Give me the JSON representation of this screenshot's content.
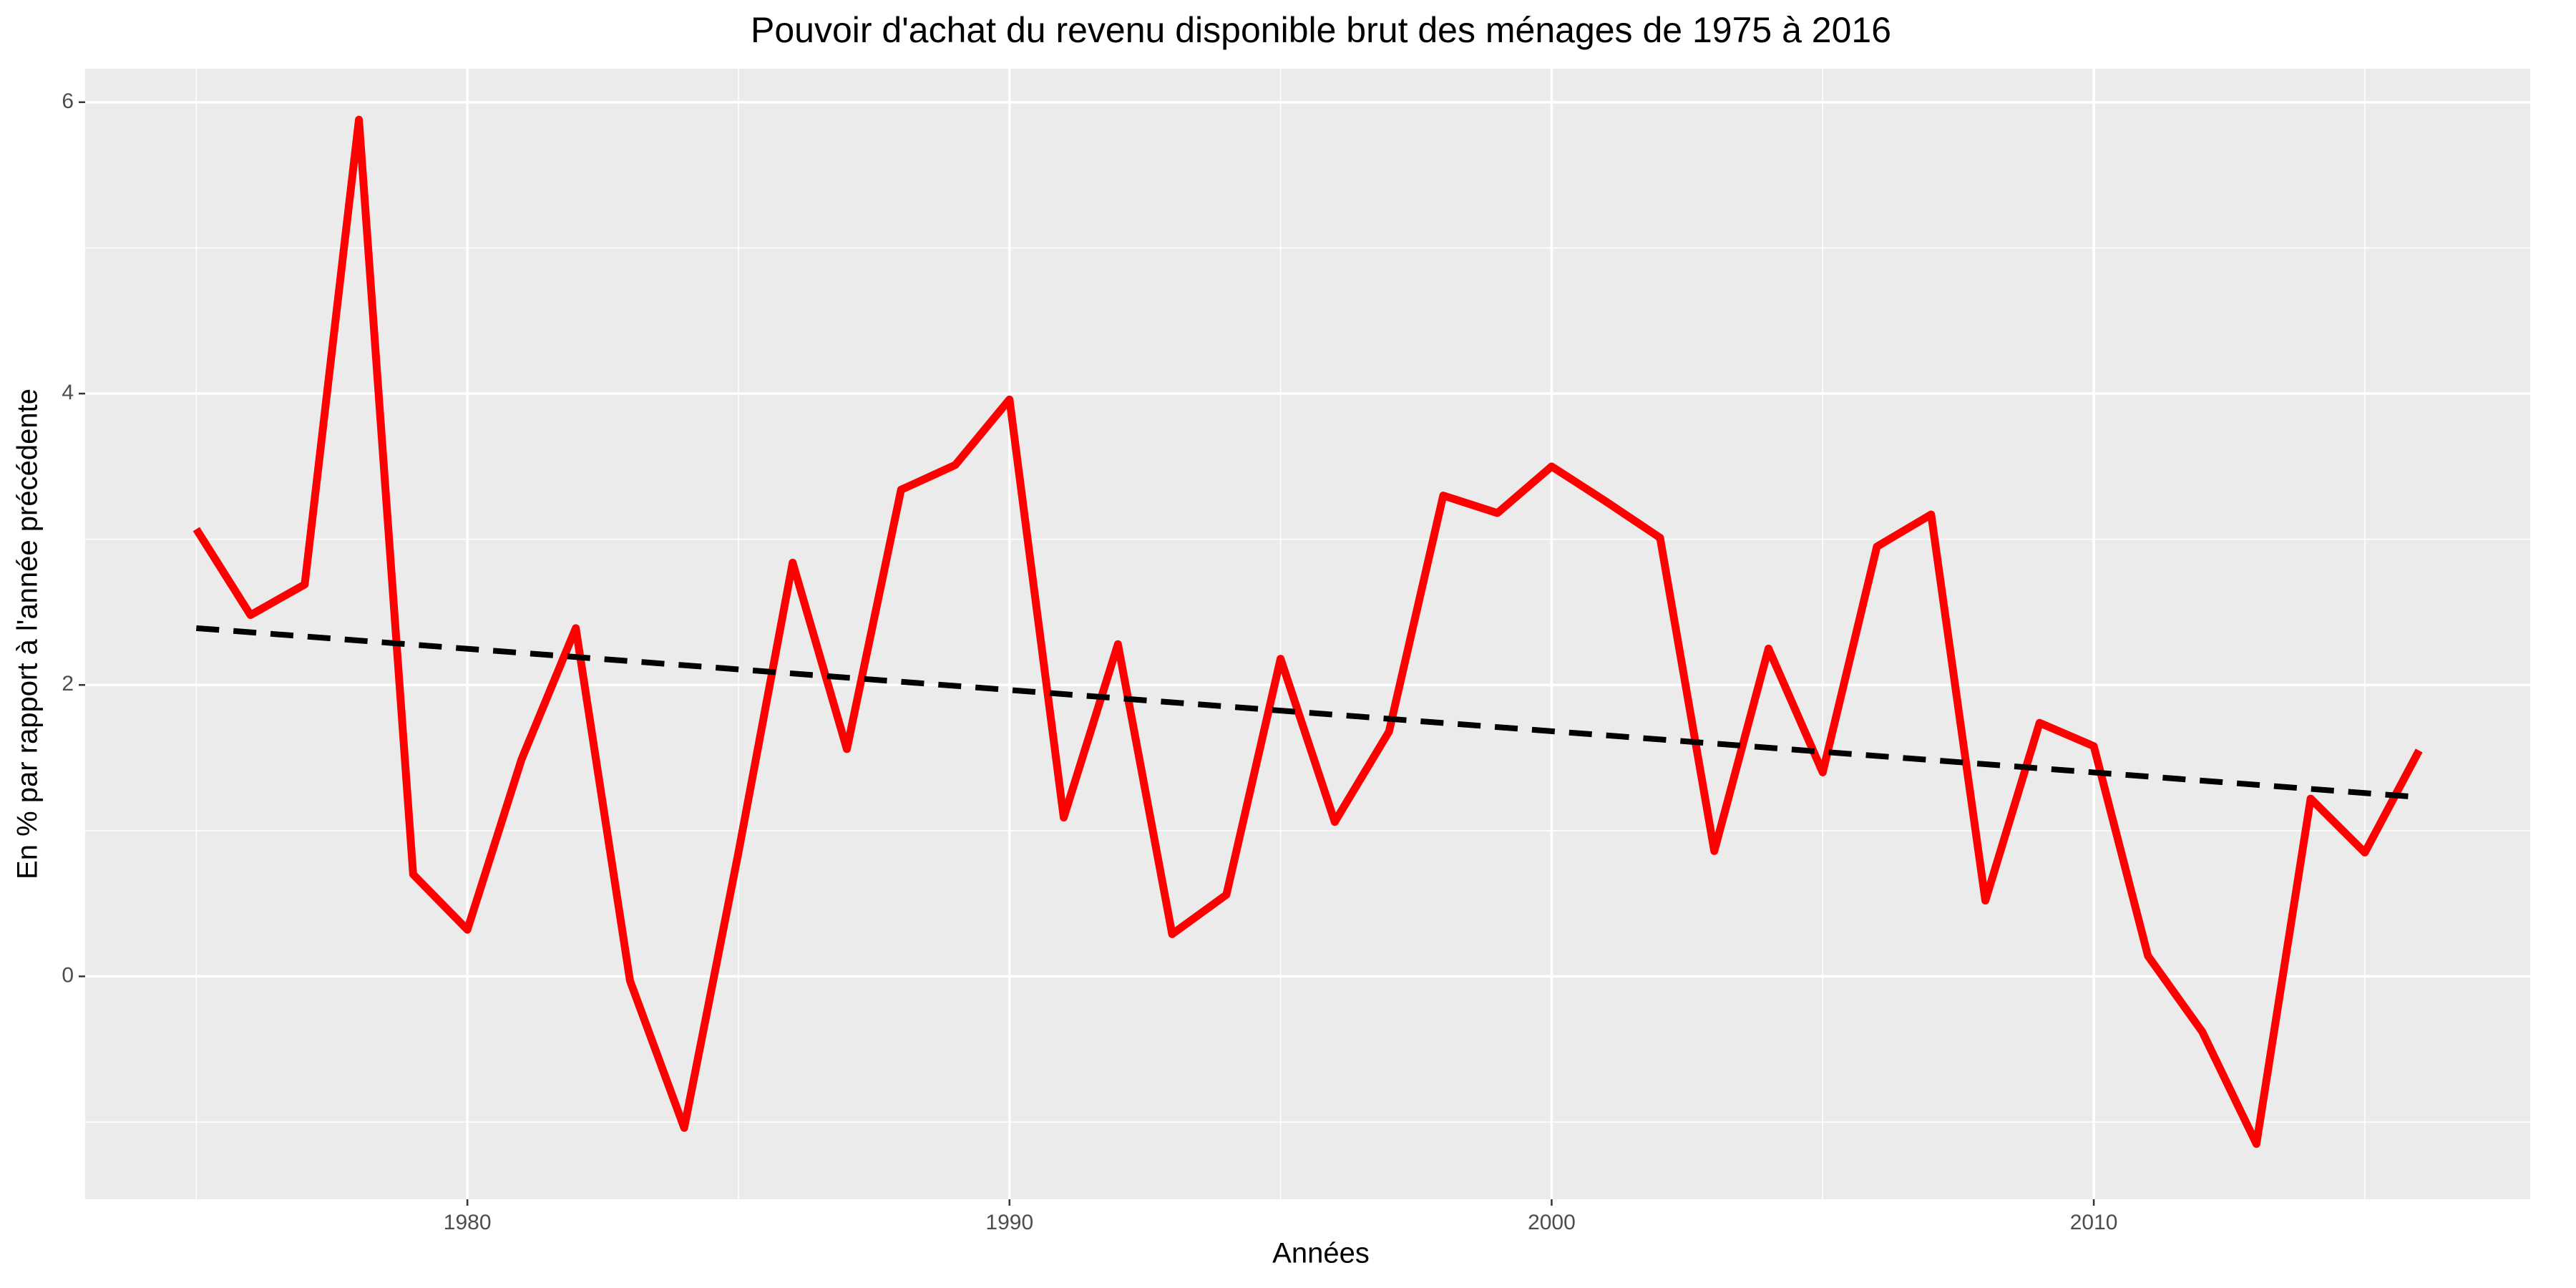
{
  "chart_data": {
    "type": "line",
    "title": "Pouvoir d'achat du revenu disponible brut des ménages de 1975 à 2016",
    "x_label": "Années",
    "y_label": "En % par rapport à l'année précédente",
    "xlim": [
      1972.95,
      2018.05
    ],
    "ylim": [
      -1.53,
      6.23
    ],
    "xticks": [
      1980,
      1990,
      2000,
      2010
    ],
    "yticks": [
      0,
      2,
      4,
      6
    ],
    "x_minor_grid": [
      1975,
      1985,
      1995,
      2005,
      2015
    ],
    "y_minor_grid": [
      -1,
      1,
      3,
      5
    ],
    "grid": true,
    "series": [
      {
        "color": "#ff0000",
        "dashed": false,
        "x": [
          1975,
          1976,
          1977,
          1978,
          1979,
          1980,
          1981,
          1982,
          1983,
          1984,
          1985,
          1986,
          1987,
          1988,
          1989,
          1990,
          1991,
          1992,
          1993,
          1994,
          1995,
          1996,
          1997,
          1998,
          1999,
          2000,
          2001,
          2002,
          2003,
          2004,
          2005,
          2006,
          2007,
          2008,
          2009,
          2010,
          2011,
          2012,
          2013,
          2014,
          2015,
          2016
        ],
        "values": [
          3.07,
          2.48,
          2.69,
          5.88,
          0.7,
          0.32,
          1.49,
          2.39,
          -0.03,
          -1.04,
          0.85,
          2.84,
          1.56,
          3.34,
          3.51,
          3.96,
          1.09,
          2.28,
          0.29,
          0.56,
          2.18,
          1.06,
          1.68,
          3.3,
          3.18,
          3.5,
          3.26,
          3.01,
          0.86,
          2.25,
          1.4,
          2.95,
          3.17,
          0.52,
          1.74,
          1.58,
          0.14,
          -0.38,
          -1.15,
          1.22,
          0.85,
          1.55
        ]
      },
      {
        "color": "#000000",
        "dashed": true,
        "x": [
          1975,
          2016
        ],
        "values": [
          2.39,
          1.23
        ]
      }
    ]
  }
}
